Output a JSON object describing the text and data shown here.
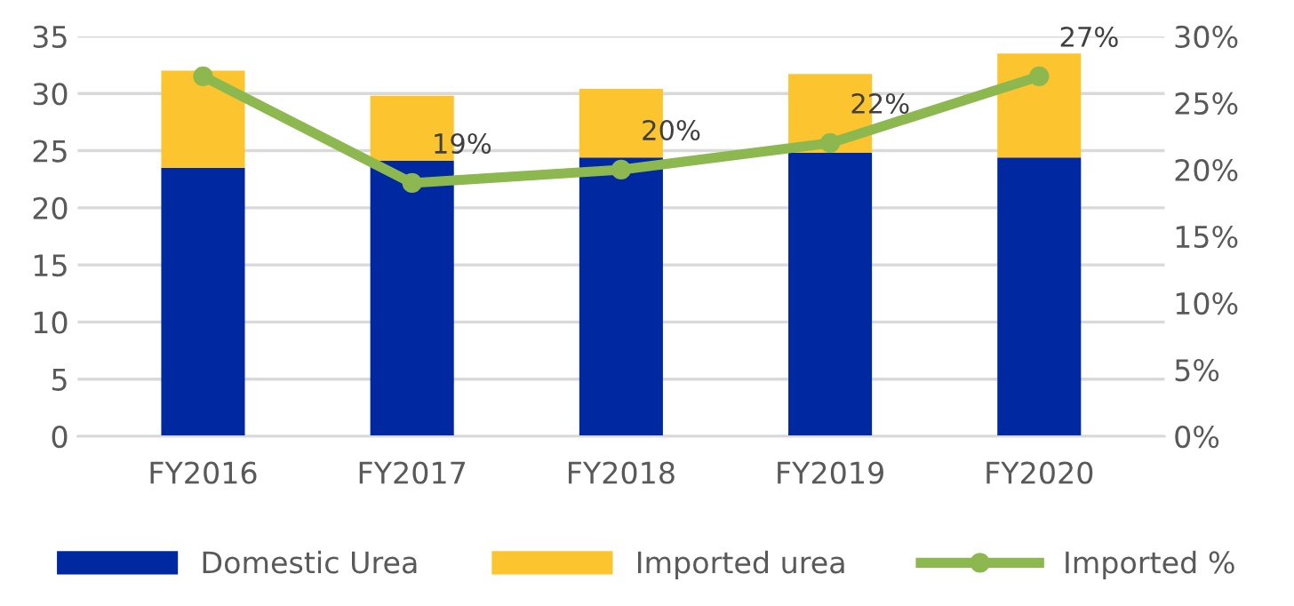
{
  "chart_data": {
    "type": "bar",
    "stacked": true,
    "categories": [
      "FY2016",
      "FY2017",
      "FY2018",
      "FY2019",
      "FY2020"
    ],
    "series": [
      {
        "name": "Domestic Urea",
        "color": "#0028a0",
        "values": [
          23.5,
          24.1,
          24.4,
          24.8,
          24.4
        ]
      },
      {
        "name": "Imported urea",
        "color": "#fcc52f",
        "values": [
          8.5,
          5.7,
          6.0,
          6.9,
          9.1
        ]
      },
      {
        "name": "Imported %",
        "type": "line",
        "axis": "y2",
        "color": "#8cb84f",
        "marker": "circle",
        "values": [
          27,
          19,
          20,
          22,
          27
        ],
        "value_labels": [
          null,
          "19%",
          "20%",
          "22%",
          "27%"
        ]
      }
    ],
    "ylim": [
      0,
      35
    ],
    "yticks": [
      0,
      5,
      10,
      15,
      20,
      25,
      30,
      35
    ],
    "y2lim": [
      0,
      30
    ],
    "y2ticks": [
      {
        "value": 0,
        "label": "0%"
      },
      {
        "value": 5,
        "label": "5%"
      },
      {
        "value": 10,
        "label": "10%"
      },
      {
        "value": 15,
        "label": "15%"
      },
      {
        "value": 20,
        "label": "20%"
      },
      {
        "value": 25,
        "label": "25%"
      },
      {
        "value": 30,
        "label": "30%"
      }
    ],
    "grid": "y",
    "legend": "bottom"
  }
}
